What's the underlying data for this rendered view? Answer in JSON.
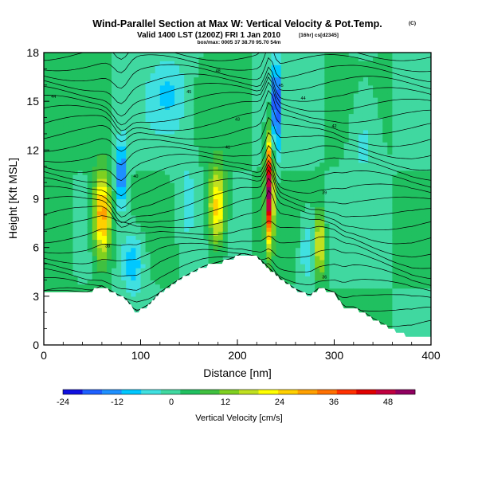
{
  "title": {
    "main": "Wind-Parallel Section at Max W: Vertical Velocity & Pot.Temp.",
    "copyright": "(C)",
    "valid_line": "Valid 1400 LST (1200Z) FRI 1 Jan 2010",
    "forecast_tag": "[16hr] cs[d2345]",
    "box_line": "box/max: 0005 37 38.70 95.70 54m"
  },
  "chart_data": {
    "type": "heatmap",
    "xlabel": "Distance [nm]",
    "ylabel": "Height [Kft MSL]",
    "xlim": [
      0,
      400
    ],
    "ylim": [
      0,
      18
    ],
    "x_ticks": [
      0,
      100,
      200,
      300,
      400
    ],
    "y_ticks": [
      0,
      3,
      6,
      9,
      12,
      15,
      18
    ],
    "colorbar": {
      "label": "Vertical Velocity [cm/s]",
      "ticks": [
        -24,
        -12,
        0,
        12,
        24,
        36,
        48
      ],
      "range": [
        -24,
        54
      ],
      "colors": [
        "#1010e0",
        "#1e60ff",
        "#1e90ff",
        "#00c8ff",
        "#40e0e0",
        "#40d8a0",
        "#20c060",
        "#40c040",
        "#7fd020",
        "#c0e020",
        "#ffff00",
        "#ffd000",
        "#ffa000",
        "#ff7000",
        "#ff3000",
        "#e00000",
        "#c00040",
        "#900060"
      ]
    },
    "terrain": {
      "x": [
        0,
        25,
        45,
        60,
        75,
        85,
        95,
        110,
        120,
        140,
        165,
        195,
        205,
        220,
        245,
        260,
        275,
        285,
        300,
        310,
        320,
        330,
        340,
        355,
        365,
        375,
        380,
        400
      ],
      "height": [
        3.3,
        3.3,
        3.2,
        3.6,
        3.1,
        2.8,
        2.0,
        2.5,
        3.2,
        4.0,
        4.8,
        5.3,
        5.6,
        5.4,
        4.0,
        3.4,
        3.0,
        3.5,
        3.2,
        2.3,
        2.3,
        2.0,
        1.6,
        1.1,
        0.8,
        0.6,
        0.4,
        0.4
      ]
    },
    "vertical_velocity_features": [
      {
        "x": 60,
        "height": 8.0,
        "peak": 30,
        "x_halfwidth": 9,
        "h_halfwidth": 2.6
      },
      {
        "x": 92,
        "height": 5.2,
        "peak": -13,
        "x_halfwidth": 12,
        "h_halfwidth": 2.0
      },
      {
        "x": 80,
        "height": 10.5,
        "peak": -18,
        "x_halfwidth": 6,
        "h_halfwidth": 2.2
      },
      {
        "x": 179,
        "height": 8.5,
        "peak": 26,
        "x_halfwidth": 9,
        "h_halfwidth": 2.4
      },
      {
        "x": 148,
        "height": 9.0,
        "peak": -6,
        "x_halfwidth": 10,
        "h_halfwidth": 3.0
      },
      {
        "x": 233,
        "height": 9.5,
        "peak": 48,
        "x_halfwidth": 4,
        "h_halfwidth": 3.2
      },
      {
        "x": 240,
        "height": 14.8,
        "peak": -24,
        "x_halfwidth": 4,
        "h_halfwidth": 3.0
      },
      {
        "x": 272,
        "height": 6.0,
        "peak": -10,
        "x_halfwidth": 8,
        "h_halfwidth": 2.0
      },
      {
        "x": 285,
        "height": 6.2,
        "peak": 24,
        "x_halfwidth": 4,
        "h_halfwidth": 2.0
      },
      {
        "x": 130,
        "height": 15.5,
        "peak": -8,
        "x_halfwidth": 20,
        "h_halfwidth": 2.5
      },
      {
        "x": 330,
        "height": 13.0,
        "peak": -7,
        "x_halfwidth": 15,
        "h_halfwidth": 3.0
      },
      {
        "x": 20,
        "height": 7.0,
        "peak": 6,
        "x_halfwidth": 12,
        "h_halfwidth": 3.0
      }
    ],
    "contour_labels": [
      "48",
      "45",
      "44",
      "45",
      "44",
      "43",
      "42",
      "41",
      "40",
      "39",
      "38",
      "36"
    ]
  }
}
